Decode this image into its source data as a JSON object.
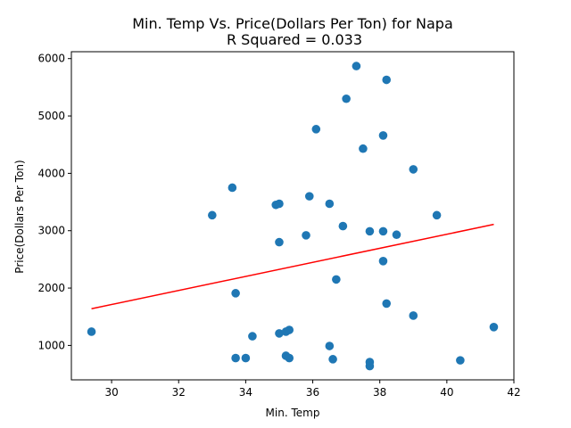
{
  "chart_data": {
    "type": "scatter",
    "title": "Min. Temp Vs. Price(Dollars Per Ton) for Napa",
    "subtitle": "R Squared =  0.033",
    "xlabel": "Min. Temp",
    "ylabel": "Price(Dollars Per Ton)",
    "xlim": [
      28.8,
      42.0
    ],
    "ylim": [
      400,
      6120
    ],
    "xticks": [
      30,
      32,
      34,
      36,
      38,
      40,
      42
    ],
    "yticks": [
      1000,
      2000,
      3000,
      4000,
      5000,
      6000
    ],
    "grid": false,
    "marker_color": "#1f77b4",
    "line_color": "#ff0000",
    "points": [
      {
        "x": 29.4,
        "y": 1240
      },
      {
        "x": 33.0,
        "y": 3270
      },
      {
        "x": 33.6,
        "y": 3750
      },
      {
        "x": 33.7,
        "y": 1910
      },
      {
        "x": 33.7,
        "y": 780
      },
      {
        "x": 34.0,
        "y": 780
      },
      {
        "x": 34.2,
        "y": 1160
      },
      {
        "x": 34.9,
        "y": 3450
      },
      {
        "x": 35.0,
        "y": 3470
      },
      {
        "x": 35.0,
        "y": 2800
      },
      {
        "x": 35.0,
        "y": 1210
      },
      {
        "x": 35.2,
        "y": 1240
      },
      {
        "x": 35.3,
        "y": 1270
      },
      {
        "x": 35.2,
        "y": 820
      },
      {
        "x": 35.3,
        "y": 780
      },
      {
        "x": 35.8,
        "y": 2920
      },
      {
        "x": 35.9,
        "y": 3600
      },
      {
        "x": 36.1,
        "y": 4770
      },
      {
        "x": 36.5,
        "y": 3470
      },
      {
        "x": 36.5,
        "y": 990
      },
      {
        "x": 36.6,
        "y": 760
      },
      {
        "x": 36.7,
        "y": 2150
      },
      {
        "x": 36.9,
        "y": 3080
      },
      {
        "x": 37.0,
        "y": 5300
      },
      {
        "x": 37.3,
        "y": 5870
      },
      {
        "x": 37.5,
        "y": 4430
      },
      {
        "x": 37.7,
        "y": 2990
      },
      {
        "x": 37.7,
        "y": 710
      },
      {
        "x": 37.7,
        "y": 640
      },
      {
        "x": 38.1,
        "y": 4660
      },
      {
        "x": 38.1,
        "y": 2990
      },
      {
        "x": 38.1,
        "y": 2470
      },
      {
        "x": 38.2,
        "y": 5630
      },
      {
        "x": 38.2,
        "y": 1730
      },
      {
        "x": 38.5,
        "y": 2930
      },
      {
        "x": 39.0,
        "y": 4070
      },
      {
        "x": 39.0,
        "y": 1520
      },
      {
        "x": 39.7,
        "y": 3270
      },
      {
        "x": 40.4,
        "y": 740
      },
      {
        "x": 41.4,
        "y": 1320
      }
    ],
    "regression_line": {
      "x": [
        29.4,
        41.4
      ],
      "y": [
        1640,
        3110
      ]
    }
  }
}
